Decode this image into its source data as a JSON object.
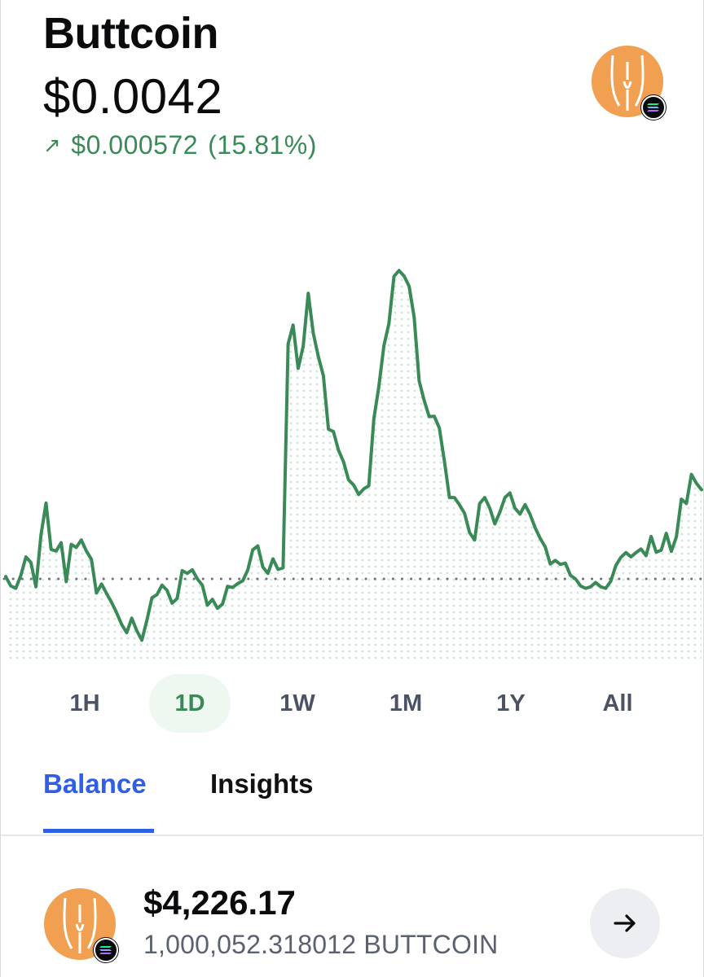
{
  "asset": {
    "name": "Buttcoin",
    "price": "$0.0042",
    "change_abs": "$0.000572",
    "change_pct": "(15.81%)",
    "change_direction": "up",
    "logo_icon": "buttcoin-logo-icon",
    "network_icon": "solana-icon"
  },
  "colors": {
    "up": "#3a8a57",
    "accent": "#2f5fe8",
    "logo": "#f0a050"
  },
  "ranges": {
    "selected": "1D",
    "items": [
      {
        "label": "1H"
      },
      {
        "label": "1D"
      },
      {
        "label": "1W"
      },
      {
        "label": "1M"
      },
      {
        "label": "1Y"
      },
      {
        "label": "All"
      }
    ]
  },
  "tabs": {
    "balance": "Balance",
    "insights": "Insights",
    "active": "Balance"
  },
  "balance": {
    "amount": "$4,226.17",
    "quantity": "1,000,052.318012 BUTTCOIN",
    "action_icon": "arrow-right-icon"
  },
  "chart_data": {
    "type": "line",
    "series": [
      {
        "values": [
          2.78,
          2.54,
          2.48,
          2.81,
          3.28,
          3.14,
          2.52,
          3.84,
          4.65,
          3.47,
          3.43,
          3.64,
          2.65,
          3.6,
          3.52,
          3.71,
          3.43,
          3.22,
          2.36,
          2.59,
          2.35,
          2.12,
          1.86,
          1.56,
          1.35,
          1.72,
          1.4,
          1.16,
          1.67,
          2.24,
          2.32,
          2.56,
          2.43,
          2.1,
          2.22,
          2.93,
          2.86,
          2.95,
          2.72,
          2.56,
          2.05,
          2.2,
          1.97,
          2.08,
          2.53,
          2.5,
          2.6,
          2.67,
          2.94,
          3.46,
          3.56,
          3.02,
          2.86,
          3.23,
          2.96,
          3.0,
          8.7,
          9.18,
          8.08,
          8.64,
          9.99,
          8.97,
          8.38,
          7.89,
          6.53,
          6.47,
          6.0,
          5.7,
          5.24,
          5.11,
          4.87,
          5.01,
          5.09,
          6.79,
          7.61,
          8.65,
          9.22,
          10.42,
          10.57,
          10.43,
          10.17,
          9.38,
          7.76,
          7.26,
          6.85,
          6.86,
          6.56,
          5.72,
          4.79,
          4.79,
          4.6,
          4.39,
          3.9,
          3.71,
          4.64,
          4.79,
          4.52,
          4.12,
          4.42,
          4.79,
          4.91,
          4.52,
          4.37,
          4.61,
          4.36,
          4.02,
          3.75,
          3.53,
          3.1,
          3.19,
          3.09,
          3.12,
          2.81,
          2.72,
          2.54,
          2.48,
          2.52,
          2.63,
          2.52,
          2.48,
          2.66,
          3.06,
          3.27,
          3.39,
          3.28,
          3.39,
          3.48,
          3.31,
          3.8,
          3.4,
          3.45,
          3.88,
          3.42,
          3.79,
          4.75,
          4.64,
          5.38,
          5.15,
          4.99
        ],
        "color": "#3a8a57"
      }
    ],
    "baseline": 2.72,
    "xlabel": "",
    "ylabel": "",
    "grid": false,
    "fill": "dotted"
  }
}
